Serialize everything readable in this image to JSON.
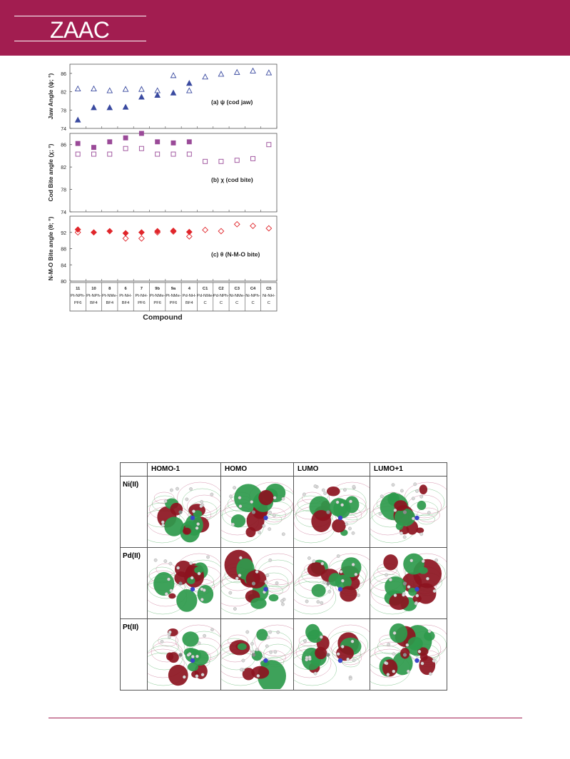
{
  "header": {
    "journal": "ZAAC",
    "color": "#a21d50"
  },
  "chart_data": {
    "type": "scatter",
    "xlabel": "Compound",
    "categories": [
      [
        "11",
        "Pt-NPh-",
        "PF6"
      ],
      [
        "10",
        "Pt-NPh-",
        "BF4"
      ],
      [
        "8",
        "Pt-NMe-",
        "BF4"
      ],
      [
        "6",
        "Pt-NH-",
        "BF4"
      ],
      [
        "7",
        "Pt-NH-",
        "PF6"
      ],
      [
        "9b",
        "Pt-NMe-",
        "PF6"
      ],
      [
        "9a",
        "Pt-NMe-",
        "PF6"
      ],
      [
        "4",
        "Pd-NH-",
        "BF4"
      ],
      [
        "C1",
        "Pd-NMe-",
        "C"
      ],
      [
        "C2",
        "Pd-NPh-",
        "C"
      ],
      [
        "C3",
        "Ni-NMe-",
        "C"
      ],
      [
        "C4",
        "Ni-NPh-",
        "C"
      ],
      [
        "C5",
        "Ni-NH-",
        "C"
      ]
    ],
    "panels": [
      {
        "ylabel": "Jaw Angle (ψ; °)",
        "annotation": "(a) ψ (cod jaw)",
        "ylim": [
          74,
          88
        ],
        "yticks": [
          74,
          78,
          82,
          86
        ],
        "color": "#3a4aa0",
        "marker": "triangle",
        "series": [
          {
            "filled": true,
            "values": [
              75.8,
              78.5,
              78.5,
              78.6,
              80.8,
              81.2,
              81.7,
              83.8,
              null,
              null,
              null,
              null,
              null
            ]
          },
          {
            "filled": false,
            "values": [
              82.6,
              82.6,
              82.2,
              82.5,
              82.5,
              82.2,
              85.5,
              82.2,
              85.2,
              85.8,
              86.2,
              86.5,
              86.1
            ]
          }
        ]
      },
      {
        "ylabel": "Cod Bite angle (χ; °)",
        "annotation": "(b) χ (cod bite)",
        "ylim": [
          74,
          88
        ],
        "yticks": [
          74,
          78,
          82,
          86
        ],
        "color": "#9a4a98",
        "marker": "square",
        "series": [
          {
            "filled": true,
            "values": [
              86.2,
              85.5,
              86.5,
              87.2,
              88.0,
              86.5,
              86.3,
              86.5,
              null,
              null,
              null,
              null,
              null
            ]
          },
          {
            "filled": false,
            "values": [
              84.3,
              84.3,
              84.3,
              85.3,
              85.3,
              84.3,
              84.3,
              84.3,
              83.0,
              83.0,
              83.2,
              83.5,
              86.0
            ]
          }
        ]
      },
      {
        "ylabel": "N-M-O Bite angle (θ; °)",
        "annotation": "(c) θ (N-M-O bite)",
        "ylim": [
          80,
          96
        ],
        "yticks": [
          80,
          84,
          88,
          92
        ],
        "color": "#e0262b",
        "marker": "diamond",
        "series": [
          {
            "filled": true,
            "values": [
              92.7,
              92.0,
              92.3,
              91.8,
              92.0,
              92.3,
              92.4,
              92.1,
              null,
              null,
              null,
              null,
              null
            ]
          },
          {
            "filled": false,
            "values": [
              92.0,
              null,
              null,
              90.5,
              90.5,
              92.0,
              92.2,
              91.0,
              92.6,
              92.3,
              94.0,
              93.6,
              93.0
            ]
          }
        ]
      }
    ]
  },
  "orbital_table": {
    "columns": [
      "HOMO-1",
      "HOMO",
      "LUMO",
      "LUMO+1"
    ],
    "rows": [
      "Ni(II)",
      "Pd(II)",
      "Pt(II)"
    ],
    "colors": {
      "green": "#2e9a4c",
      "red": "#8c1420",
      "contour_green": "#6dbb7a",
      "contour_pink": "#cc7a9a"
    }
  }
}
